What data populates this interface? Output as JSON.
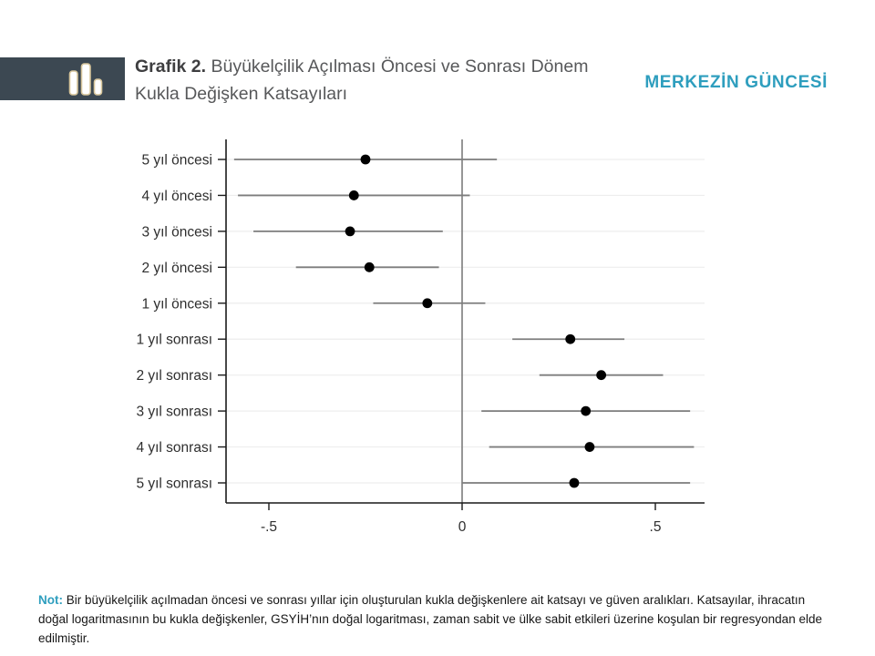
{
  "header": {
    "title_bold": "Grafik 2.",
    "title_line1": "Büyükelçilik Açılması Öncesi ve Sonrası Dönem",
    "title_line2": "Kukla Değişken Katsayıları",
    "brand": "MERKEZİN GÜNCESİ",
    "logo_icon": "bar-chart-icon"
  },
  "colors": {
    "brand_teal": "#2E9EBE",
    "logo_bg": "#3C4852",
    "logo_bar_outline": "#D8C69B",
    "logo_bar_fill": "#FFFFFF",
    "title_text": "#57585A",
    "axis_line": "#1A1A1A",
    "zero_line": "#8A8A8A",
    "ci_line": "#7D7D7D",
    "dot": "#000000",
    "gridline": "#EDEDED",
    "tick_label": "#2E2E2E",
    "note_text": "#161616"
  },
  "chart_data": {
    "type": "scatter",
    "subtype": "coefficient-dot-whisker",
    "orientation": "horizontal",
    "title": "Büyükelçilik Açılması Öncesi ve Sonrası Dönem Kukla Değişken Katsayıları",
    "xlabel": "",
    "ylabel": "",
    "categories": [
      "5 yıl öncesi",
      "4 yıl öncesi",
      "3 yıl öncesi",
      "2 yıl öncesi",
      "1 yıl öncesi",
      "1 yıl sonrası",
      "2 yıl sonrası",
      "3 yıl sonrası",
      "4 yıl sonrası",
      "5 yıl sonrası"
    ],
    "coefficients": [
      -0.25,
      -0.28,
      -0.29,
      -0.24,
      -0.09,
      0.28,
      0.36,
      0.32,
      0.33,
      0.29
    ],
    "ci_low": [
      -0.59,
      -0.58,
      -0.54,
      -0.43,
      -0.23,
      0.13,
      0.2,
      0.05,
      0.07,
      0.0
    ],
    "ci_high": [
      0.09,
      0.02,
      -0.05,
      -0.06,
      0.06,
      0.42,
      0.52,
      0.59,
      0.6,
      0.59
    ],
    "x_ticks": [
      -0.5,
      0,
      0.5
    ],
    "x_tick_labels": [
      "-.5",
      "0",
      ".5"
    ],
    "xlim": [
      -0.61,
      0.62
    ],
    "zero_reference_line": 0,
    "grid": "horizontal light gridline per category",
    "legend": "none"
  },
  "note": {
    "label": "Not:",
    "text": "Bir büyükelçilik açılmadan öncesi ve sonrası yıllar için oluşturulan kukla değişkenlere ait katsayı ve güven aralıkları. Katsayılar, ihracatın doğal logaritmasının bu kukla değişkenler, GSYİH’nın doğal logaritması, zaman sabit ve ülke sabit etkileri üzerine koşulan bir regresyondan elde edilmiştir."
  }
}
